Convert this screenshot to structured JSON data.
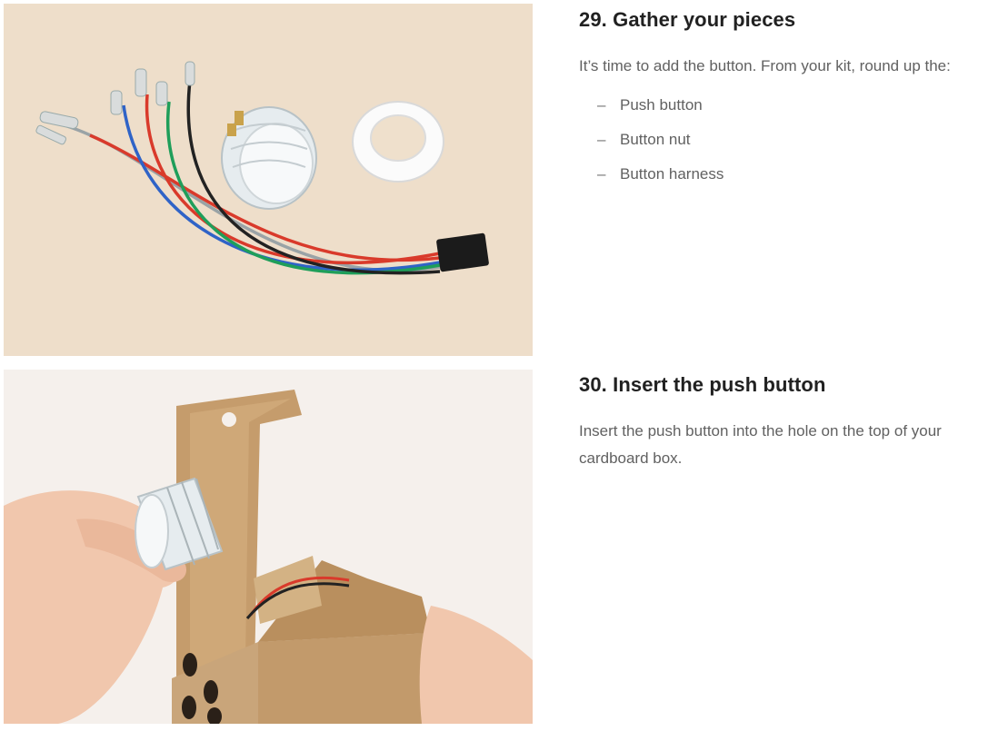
{
  "steps": [
    {
      "number": "29.",
      "title": "Gather your pieces",
      "description": "It’s time to add the button. From your kit, round up the:",
      "items": [
        "Push button",
        "Button nut",
        "Button harness"
      ],
      "photo_icon": "parts-photo"
    },
    {
      "number": "30.",
      "title": "Insert the push button",
      "description": "Insert the push button into the hole on the top of your cardboard box.",
      "photo_icon": "insert-button-photo"
    }
  ],
  "list_bullet": "–",
  "colors": {
    "background_photo1": "#f1e2cf",
    "background_photo2": "#f5f0ec",
    "cardboard": "#c9a57a",
    "wire_red": "#d93a2b",
    "wire_blue": "#2f63c7",
    "wire_green": "#1f9e5a",
    "wire_black": "#222222",
    "wire_gray": "#9aa3a6"
  }
}
